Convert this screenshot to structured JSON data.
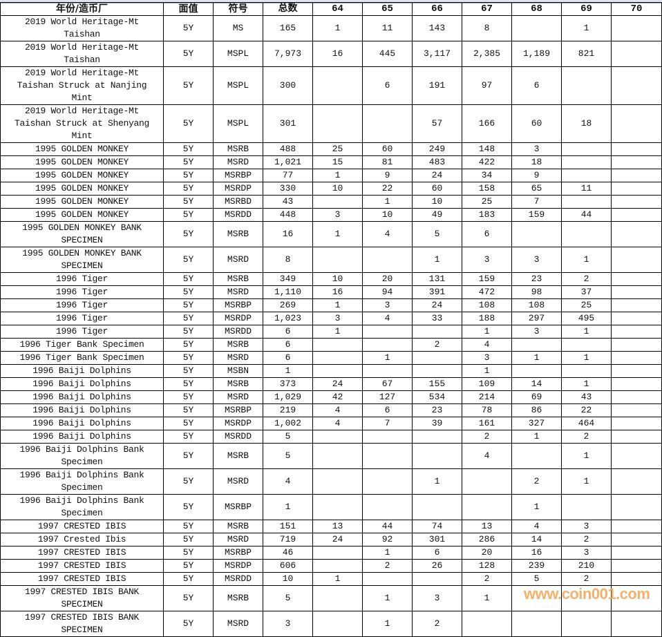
{
  "headers": [
    "年份/造币厂",
    "面值",
    "符号",
    "总数",
    "64",
    "65",
    "66",
    "67",
    "68",
    "69",
    "70"
  ],
  "rows": [
    {
      "name": "2019 World Heritage-Mt\nTaishan",
      "denom": "5Y",
      "grade": "MS",
      "total": "165",
      "g": [
        "1",
        "11",
        "143",
        "8",
        "",
        "1",
        ""
      ]
    },
    {
      "name": "2019 World Heritage-Mt\nTaishan",
      "denom": "5Y",
      "grade": "MSPL",
      "total": "7,973",
      "g": [
        "16",
        "445",
        "3,117",
        "2,385",
        "1,189",
        "821",
        ""
      ]
    },
    {
      "name": "2019 World Heritage-Mt\nTaishan Struck at Nanjing\nMint",
      "denom": "5Y",
      "grade": "MSPL",
      "total": "300",
      "g": [
        "",
        "6",
        "191",
        "97",
        "6",
        "",
        ""
      ]
    },
    {
      "name": "2019 World Heritage-Mt\nTaishan Struck at Shenyang\nMint",
      "denom": "5Y",
      "grade": "MSPL",
      "total": "301",
      "g": [
        "",
        "",
        "57",
        "166",
        "60",
        "18",
        ""
      ]
    },
    {
      "name": "1995 GOLDEN MONKEY",
      "denom": "5Y",
      "grade": "MSRB",
      "total": "488",
      "g": [
        "25",
        "60",
        "249",
        "148",
        "3",
        "",
        ""
      ]
    },
    {
      "name": "1995 GOLDEN MONKEY",
      "denom": "5Y",
      "grade": "MSRD",
      "total": "1,021",
      "g": [
        "15",
        "81",
        "483",
        "422",
        "18",
        "",
        ""
      ]
    },
    {
      "name": "1995 GOLDEN MONKEY",
      "denom": "5Y",
      "grade": "MSRBP",
      "total": "77",
      "g": [
        "1",
        "9",
        "24",
        "34",
        "9",
        "",
        ""
      ]
    },
    {
      "name": "1995 GOLDEN MONKEY",
      "denom": "5Y",
      "grade": "MSRDP",
      "total": "330",
      "g": [
        "10",
        "22",
        "60",
        "158",
        "65",
        "11",
        ""
      ]
    },
    {
      "name": "1995 GOLDEN MONKEY",
      "denom": "5Y",
      "grade": "MSRBD",
      "total": "43",
      "g": [
        "",
        "1",
        "10",
        "25",
        "7",
        "",
        ""
      ]
    },
    {
      "name": "1995 GOLDEN MONKEY",
      "denom": "5Y",
      "grade": "MSRDD",
      "total": "448",
      "g": [
        "3",
        "10",
        "49",
        "183",
        "159",
        "44",
        ""
      ]
    },
    {
      "name": "1995 GOLDEN MONKEY BANK\nSPECIMEN",
      "denom": "5Y",
      "grade": "MSRB",
      "total": "16",
      "g": [
        "1",
        "4",
        "5",
        "6",
        "",
        "",
        ""
      ]
    },
    {
      "name": "1995 GOLDEN MONKEY BANK\nSPECIMEN",
      "denom": "5Y",
      "grade": "MSRD",
      "total": "8",
      "g": [
        "",
        "",
        "1",
        "3",
        "3",
        "1",
        ""
      ]
    },
    {
      "name": "1996 Tiger",
      "denom": "5Y",
      "grade": "MSRB",
      "total": "349",
      "g": [
        "10",
        "20",
        "131",
        "159",
        "23",
        "2",
        ""
      ]
    },
    {
      "name": "1996 Tiger",
      "denom": "5Y",
      "grade": "MSRD",
      "total": "1,110",
      "g": [
        "16",
        "94",
        "391",
        "472",
        "98",
        "37",
        ""
      ]
    },
    {
      "name": "1996 Tiger",
      "denom": "5Y",
      "grade": "MSRBP",
      "total": "269",
      "g": [
        "1",
        "3",
        "24",
        "108",
        "108",
        "25",
        ""
      ]
    },
    {
      "name": "1996 Tiger",
      "denom": "5Y",
      "grade": "MSRDP",
      "total": "1,023",
      "g": [
        "3",
        "4",
        "33",
        "188",
        "297",
        "495",
        ""
      ]
    },
    {
      "name": "1996 Tiger",
      "denom": "5Y",
      "grade": "MSRDD",
      "total": "6",
      "g": [
        "1",
        "",
        "",
        "1",
        "3",
        "1",
        ""
      ]
    },
    {
      "name": "1996 Tiger Bank Specimen",
      "denom": "5Y",
      "grade": "MSRB",
      "total": "6",
      "g": [
        "",
        "",
        "2",
        "4",
        "",
        "",
        ""
      ]
    },
    {
      "name": "1996 Tiger Bank Specimen",
      "denom": "5Y",
      "grade": "MSRD",
      "total": "6",
      "g": [
        "",
        "1",
        "",
        "3",
        "1",
        "1",
        ""
      ]
    },
    {
      "name": "1996 Baiji Dolphins",
      "denom": "5Y",
      "grade": "MSBN",
      "total": "1",
      "g": [
        "",
        "",
        "",
        "1",
        "",
        "",
        ""
      ]
    },
    {
      "name": "1996 Baiji Dolphins",
      "denom": "5Y",
      "grade": "MSRB",
      "total": "373",
      "g": [
        "24",
        "67",
        "155",
        "109",
        "14",
        "1",
        ""
      ]
    },
    {
      "name": "1996 Baiji Dolphins",
      "denom": "5Y",
      "grade": "MSRD",
      "total": "1,029",
      "g": [
        "42",
        "127",
        "534",
        "214",
        "69",
        "43",
        ""
      ]
    },
    {
      "name": "1996 Baiji Dolphins",
      "denom": "5Y",
      "grade": "MSRBP",
      "total": "219",
      "g": [
        "4",
        "6",
        "23",
        "78",
        "86",
        "22",
        ""
      ]
    },
    {
      "name": "1996 Baiji Dolphins",
      "denom": "5Y",
      "grade": "MSRDP",
      "total": "1,002",
      "g": [
        "4",
        "7",
        "39",
        "161",
        "327",
        "464",
        ""
      ]
    },
    {
      "name": "1996 Baiji Dolphins",
      "denom": "5Y",
      "grade": "MSRDD",
      "total": "5",
      "g": [
        "",
        "",
        "",
        "2",
        "1",
        "2",
        ""
      ]
    },
    {
      "name": "1996 Baiji Dolphins Bank\nSpecimen",
      "denom": "5Y",
      "grade": "MSRB",
      "total": "5",
      "g": [
        "",
        "",
        "",
        "4",
        "",
        "1",
        ""
      ]
    },
    {
      "name": "1996 Baiji Dolphins Bank\nSpecimen",
      "denom": "5Y",
      "grade": "MSRD",
      "total": "4",
      "g": [
        "",
        "",
        "1",
        "",
        "2",
        "1",
        ""
      ]
    },
    {
      "name": "1996 Baiji Dolphins Bank\nSpecimen",
      "denom": "5Y",
      "grade": "MSRBP",
      "total": "1",
      "g": [
        "",
        "",
        "",
        "",
        "1",
        "",
        ""
      ]
    },
    {
      "name": "1997 CRESTED IBIS",
      "denom": "5Y",
      "grade": "MSRB",
      "total": "151",
      "g": [
        "13",
        "44",
        "74",
        "13",
        "4",
        "3",
        ""
      ]
    },
    {
      "name": "1997 Crested Ibis",
      "denom": "5Y",
      "grade": "MSRD",
      "total": "719",
      "g": [
        "24",
        "92",
        "301",
        "286",
        "14",
        "2",
        ""
      ]
    },
    {
      "name": "1997 CRESTED IBIS",
      "denom": "5Y",
      "grade": "MSRBP",
      "total": "46",
      "g": [
        "",
        "1",
        "6",
        "20",
        "16",
        "3",
        ""
      ]
    },
    {
      "name": "1997 CRESTED IBIS",
      "denom": "5Y",
      "grade": "MSRDP",
      "total": "606",
      "g": [
        "",
        "2",
        "26",
        "128",
        "239",
        "210",
        ""
      ]
    },
    {
      "name": "1997 CRESTED IBIS",
      "denom": "5Y",
      "grade": "MSRDD",
      "total": "10",
      "g": [
        "1",
        "",
        "",
        "2",
        "5",
        "2",
        ""
      ]
    },
    {
      "name": "1997 CRESTED IBIS BANK\nSPECIMEN",
      "denom": "5Y",
      "grade": "MSRB",
      "total": "5",
      "g": [
        "",
        "1",
        "3",
        "1",
        "",
        "",
        ""
      ]
    },
    {
      "name": "1997 CRESTED IBIS BANK\nSPECIMEN",
      "denom": "5Y",
      "grade": "MSRD",
      "total": "3",
      "g": [
        "",
        "1",
        "2",
        "",
        "",
        "",
        ""
      ]
    }
  ],
  "watermark": "www.coin001.com",
  "colors": {
    "watermark": "#f4a95a",
    "grid": "#000000",
    "column_strip": "#dfe6ef"
  }
}
